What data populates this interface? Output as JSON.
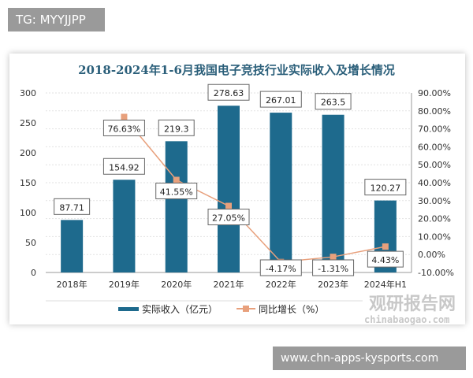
{
  "tag_label": "TG: MYYJJPP",
  "site_label": "www.chn-apps-kysports.com",
  "watermark": {
    "cn": "观研报告网",
    "en": "chinabaogao.com"
  },
  "chart_data": {
    "type": "bar+line",
    "title": "2018-2024年1-6月我国电子竞技行业实际收入及增长情况",
    "categories": [
      "2018年",
      "2019年",
      "2020年",
      "2021年",
      "2022年",
      "2023年",
      "2024年H1"
    ],
    "series": [
      {
        "name": "实际收入（亿元）",
        "type": "bar",
        "axis": "left",
        "color": "#1e6a8d",
        "values": [
          87.71,
          154.92,
          219.3,
          278.63,
          267.01,
          263.5,
          120.27
        ],
        "labels": [
          "87.71",
          "154.92",
          "219.3",
          "278.63",
          "267.01",
          "263.5",
          "120.27"
        ]
      },
      {
        "name": "同比增长（%）",
        "type": "line",
        "axis": "right",
        "color": "#e8a07c",
        "values": [
          null,
          76.63,
          41.55,
          27.05,
          -4.17,
          -1.31,
          4.43
        ],
        "labels": [
          "",
          "76.63%",
          "41.55%",
          "27.05%",
          "-4.17%",
          "-1.31%",
          "4.43%"
        ]
      }
    ],
    "ylim_left": [
      0,
      300
    ],
    "yticks_left": [
      "0",
      "50",
      "100",
      "150",
      "200",
      "250",
      "300"
    ],
    "ylim_right": [
      -10,
      90
    ],
    "yticks_right": [
      "-10.00%",
      "0.00%",
      "10.00%",
      "20.00%",
      "30.00%",
      "40.00%",
      "50.00%",
      "60.00%",
      "70.00%",
      "80.00%",
      "90.00%"
    ],
    "grid": true,
    "legend": "bottom"
  }
}
